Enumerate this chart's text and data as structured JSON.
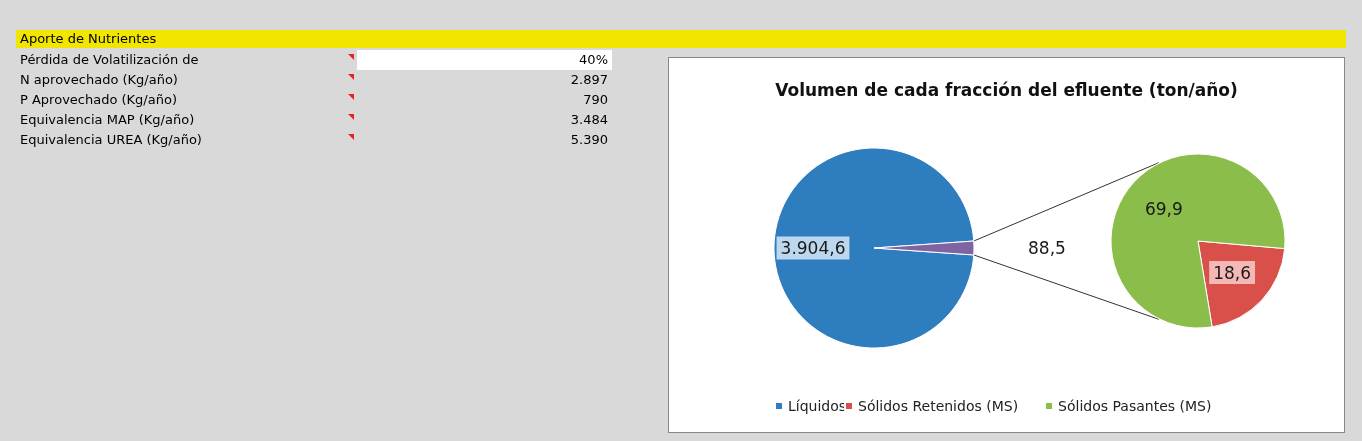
{
  "chart_data": [
    {
      "type": "other",
      "title": "Aporte de Nutrientes",
      "categories": [
        "Pérdida de Volatilización de",
        "N aprovechado (Kg/año)",
        "P Aprovechado (Kg/año)",
        "Equivalencia MAP (Kg/año)",
        "Equivalencia UREA (Kg/año)"
      ],
      "value_labels": [
        "40%",
        "2.897",
        "790",
        "3.484",
        "5.390"
      ]
    },
    {
      "type": "pie",
      "title": "Volumen de cada fracción del efluente (ton/año)",
      "legend": "bottom",
      "categories": [
        "Líquidos",
        null
      ],
      "values": [
        3904.6,
        88.5
      ],
      "colors": [
        "#2e7dbf",
        "#8064a2"
      ],
      "value_labels": [
        "3.904,6",
        "88,5"
      ]
    },
    {
      "type": "pie",
      "legend": "bottom",
      "categories": [
        "Sólidos Retenidos (MS)",
        "Sólidos Pasantes (MS)"
      ],
      "values": [
        18.6,
        69.9
      ],
      "colors": [
        "#d9504a",
        "#8bbd4b"
      ],
      "value_labels": [
        "18,6",
        "69,9"
      ]
    }
  ]
}
